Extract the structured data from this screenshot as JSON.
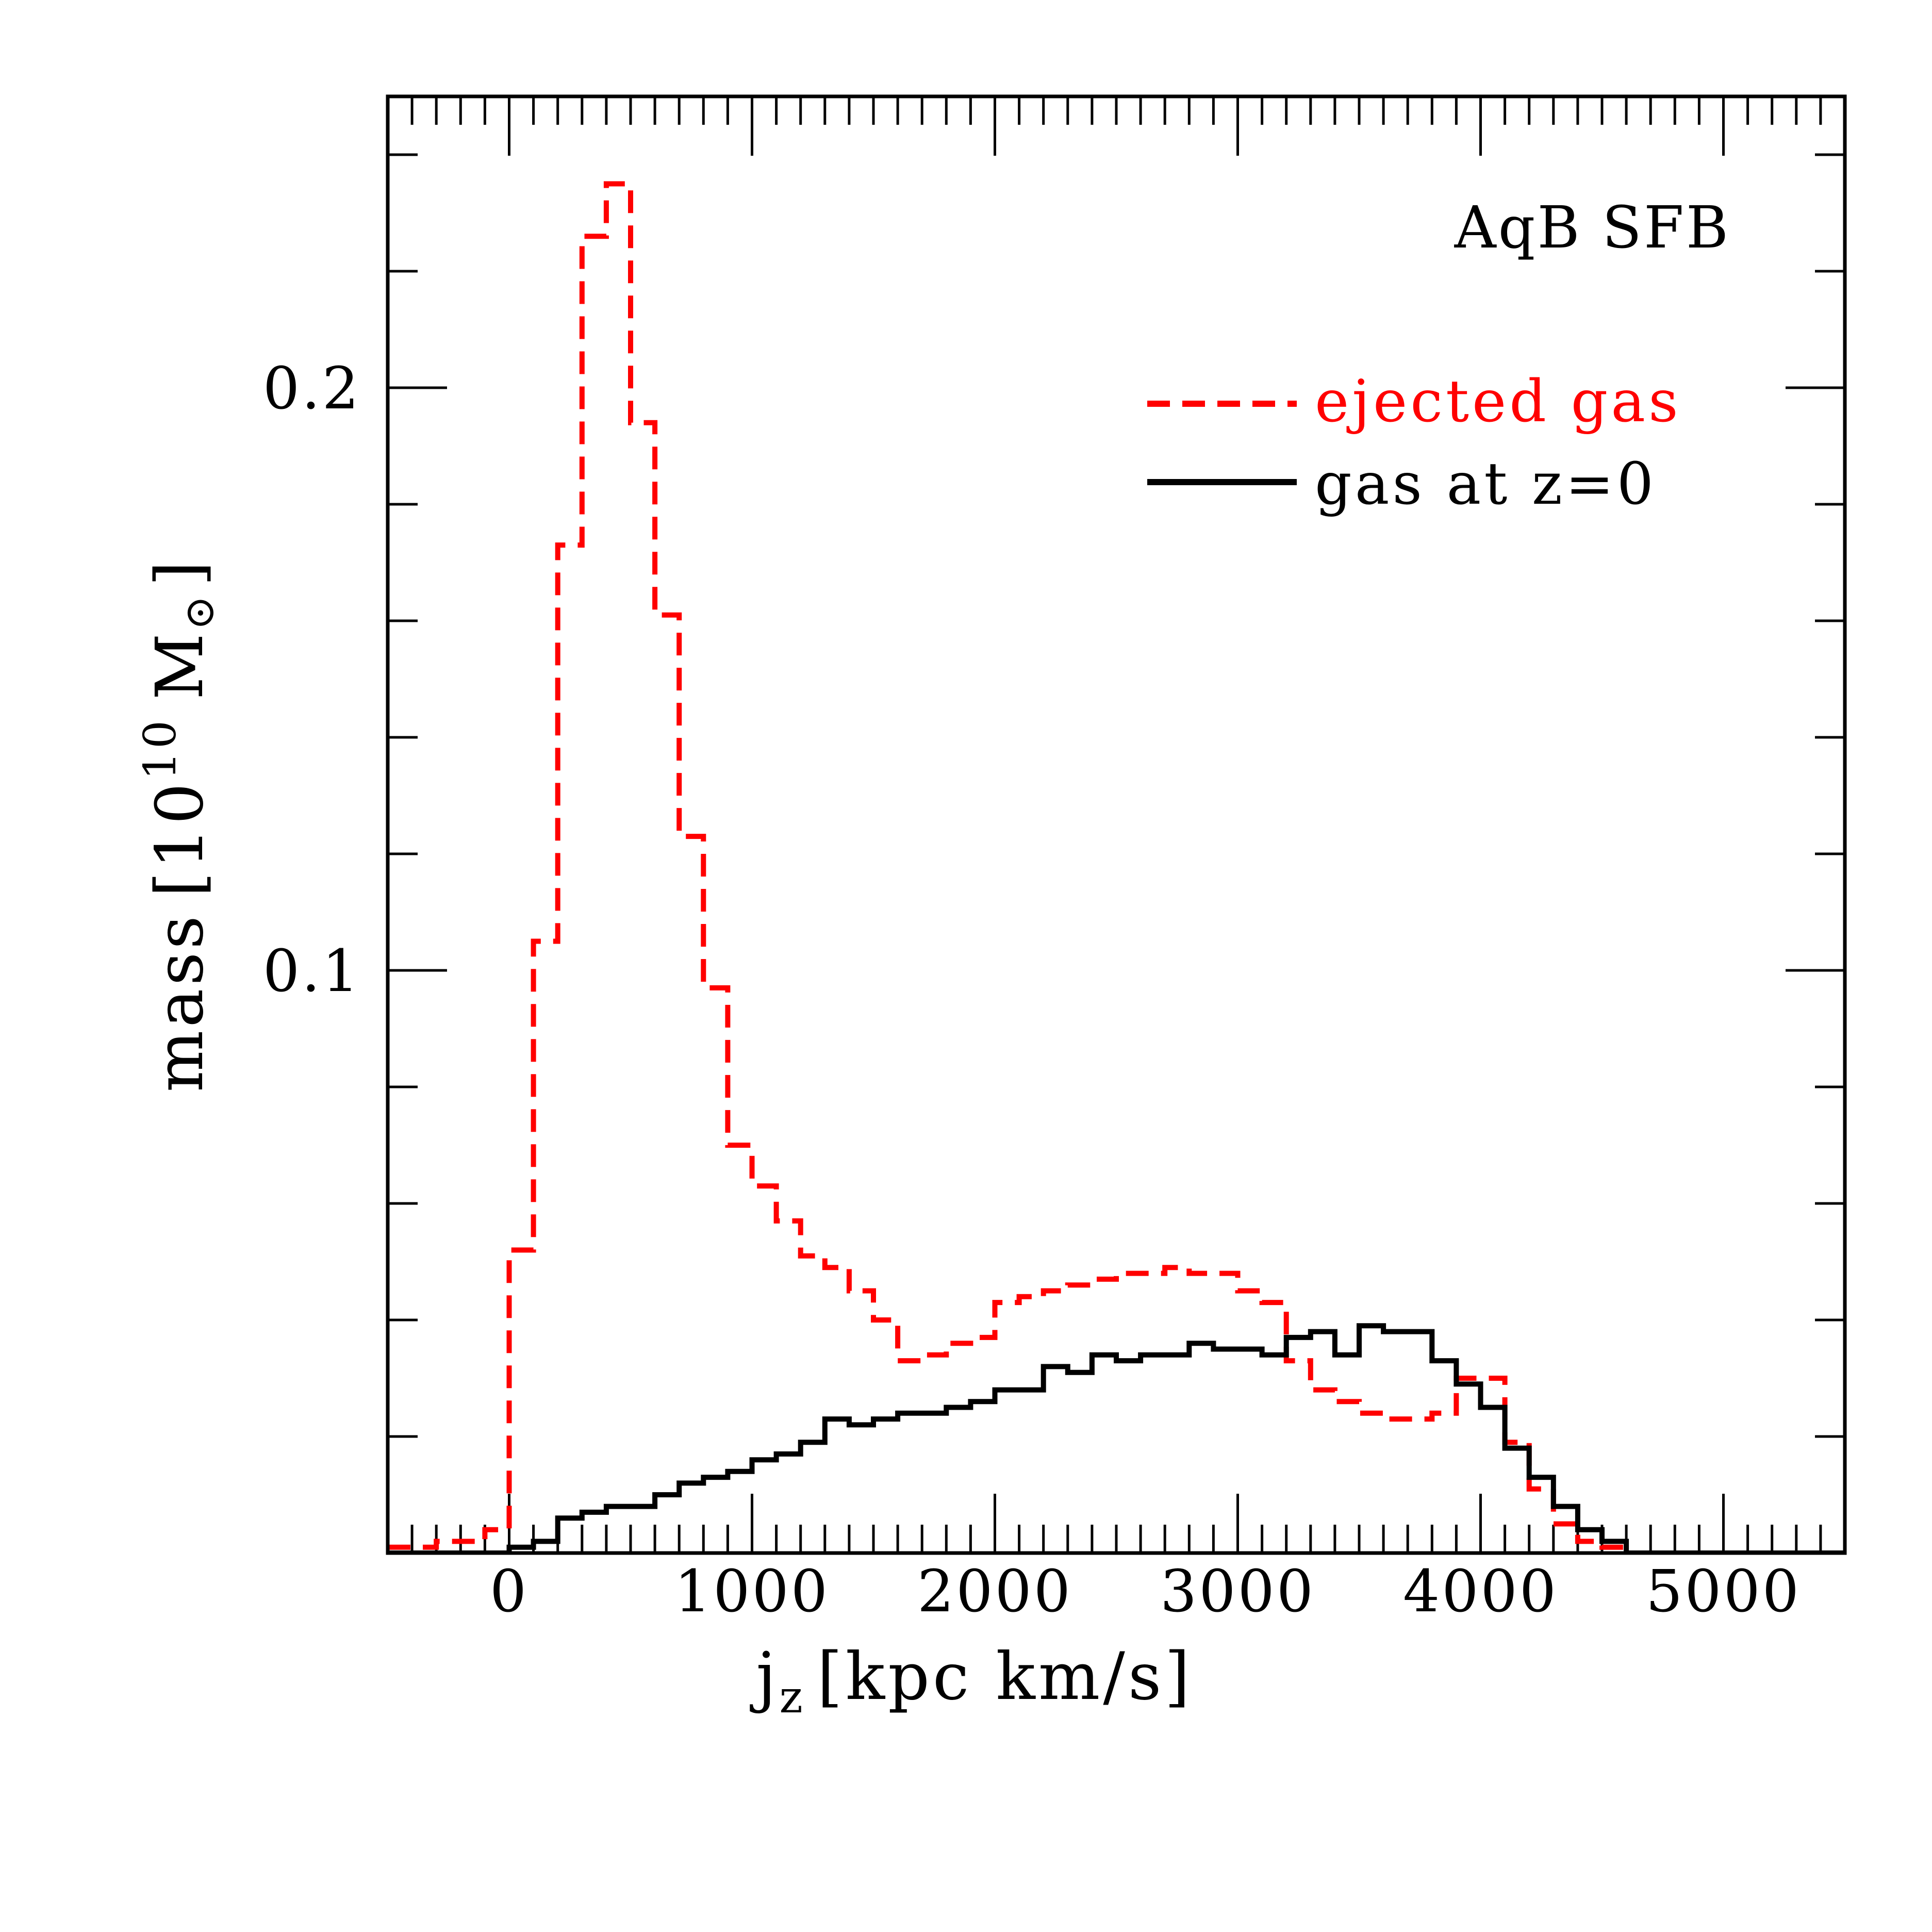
{
  "chart_data": {
    "type": "histogram",
    "title": "",
    "annotation": "AqB SFB",
    "xlabel": {
      "base": "j",
      "subscript": "z",
      "units": "[kpc km/s]"
    },
    "ylabel": {
      "quantity": "mass",
      "open": "[10",
      "exponent": "10",
      "units": "M",
      "solar_symbol": "⊙",
      "close": "]"
    },
    "xlim": [
      -500,
      5500
    ],
    "ylim": [
      0,
      0.25
    ],
    "xticks_major": [
      0,
      1000,
      2000,
      3000,
      4000,
      5000
    ],
    "xtick_labels": [
      "0",
      "1000",
      "2000",
      "3000",
      "4000",
      "5000"
    ],
    "xticks_minor_step": 100,
    "yticks_major": [
      0.1,
      0.2
    ],
    "ytick_labels": [
      "0.1",
      "0.2"
    ],
    "yticks_minor_step": 0.02,
    "bin_width": 100,
    "bin_start": -500,
    "legend_position": "top-right",
    "series": [
      {
        "name": "ejected gas",
        "color": "#ff0000",
        "style": "dashed",
        "values": [
          0.001,
          0.001,
          0.002,
          0.002,
          0.004,
          0.052,
          0.105,
          0.173,
          0.226,
          0.235,
          0.194,
          0.161,
          0.123,
          0.097,
          0.07,
          0.063,
          0.057,
          0.051,
          0.049,
          0.045,
          0.04,
          0.033,
          0.034,
          0.036,
          0.037,
          0.043,
          0.044,
          0.045,
          0.046,
          0.047,
          0.048,
          0.048,
          0.049,
          0.048,
          0.048,
          0.045,
          0.043,
          0.033,
          0.028,
          0.026,
          0.024,
          0.023,
          0.023,
          0.024,
          0.03,
          0.03,
          0.019,
          0.011,
          0.005,
          0.002,
          0.001,
          0.0,
          0.0,
          0.0,
          0.0,
          0.0,
          0.0,
          0.0,
          0.0,
          0.0
        ]
      },
      {
        "name": "gas at z=0",
        "color": "#000000",
        "style": "solid",
        "values": [
          0.0,
          0.0,
          0.0,
          0.0,
          0.0,
          0.001,
          0.002,
          0.006,
          0.007,
          0.008,
          0.008,
          0.01,
          0.012,
          0.013,
          0.014,
          0.016,
          0.017,
          0.019,
          0.023,
          0.022,
          0.023,
          0.024,
          0.024,
          0.025,
          0.026,
          0.028,
          0.028,
          0.032,
          0.031,
          0.034,
          0.033,
          0.034,
          0.034,
          0.036,
          0.035,
          0.035,
          0.034,
          0.037,
          0.038,
          0.034,
          0.039,
          0.038,
          0.038,
          0.033,
          0.029,
          0.025,
          0.018,
          0.013,
          0.008,
          0.004,
          0.002,
          0.0,
          0.0,
          0.0,
          0.0,
          0.0,
          0.0,
          0.0,
          0.0,
          0.0
        ]
      }
    ]
  }
}
